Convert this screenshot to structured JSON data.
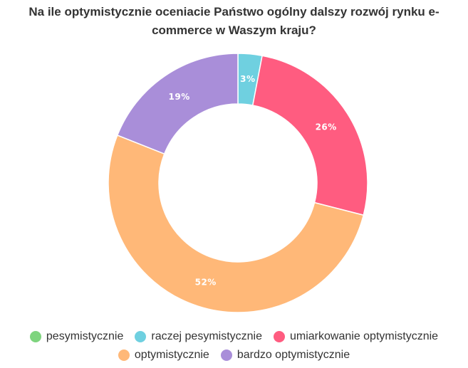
{
  "chart_data": {
    "type": "pie",
    "title": "Na ile optymistycznie oceniacie Państwo ogólny dalszy rozwój rynku e-commerce w Waszym kraju?",
    "categories": [
      "pesymistycznie",
      "raczej pesymistycznie",
      "umiarkowanie optymistycznie",
      "optymistycznie",
      "bardzo optymistycznie"
    ],
    "values": [
      0,
      3,
      26,
      52,
      19
    ],
    "value_labels": [
      "",
      "3%",
      "26%",
      "52%",
      "19%"
    ],
    "colors": [
      "#7ed47e",
      "#6fd0e0",
      "#ff5c80",
      "#ffb878",
      "#a98ed9"
    ],
    "donut": true,
    "legend_position": "bottom"
  }
}
